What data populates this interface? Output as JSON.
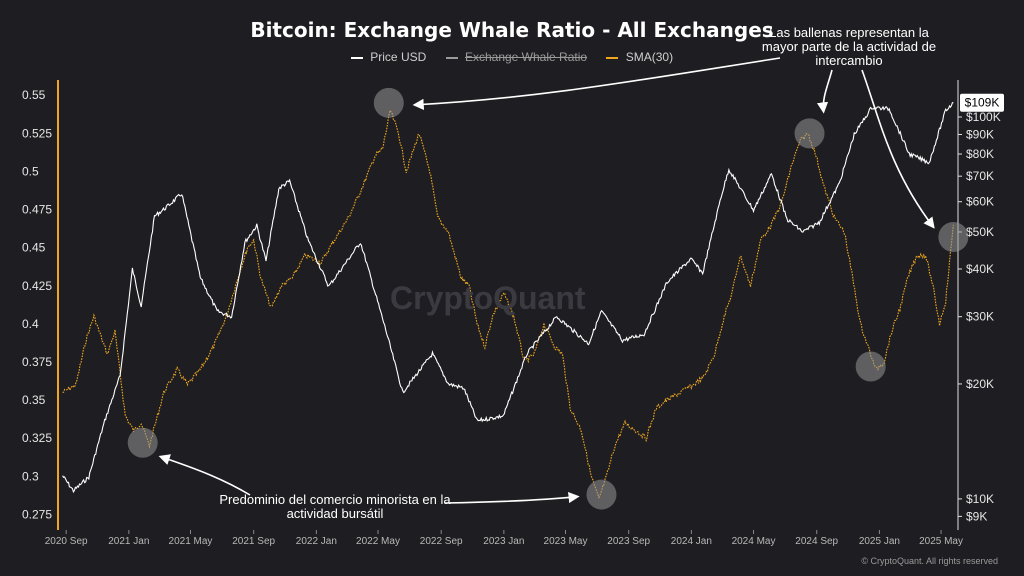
{
  "title": "Bitcoin: Exchange Whale Ratio - All Exchanges",
  "legend": {
    "price": "Price USD",
    "ratio": "Exchange Whale Ratio",
    "sma": "SMA(30)"
  },
  "annotations": {
    "top": "Las ballenas representan la mayor parte de la actividad de intercambio",
    "bottom": "Predominio del comercio minorista en la actividad bursátil"
  },
  "watermark": "CryptoQuant",
  "copyright": "© CryptoQuant. All rights reserved",
  "colors": {
    "background": "#1e1e22",
    "price": "#ffffff",
    "sma": "#f0a71e",
    "left_axis": "#f0a71e",
    "grid": "#2b2b31"
  },
  "chart_data": {
    "type": "line",
    "title": "Bitcoin: Exchange Whale Ratio - All Exchanges",
    "x_ticks": [
      "2020 Sep",
      "2021 Jan",
      "2021 May",
      "2021 Sep",
      "2022 Jan",
      "2022 May",
      "2022 Sep",
      "2023 Jan",
      "2023 May",
      "2023 Sep",
      "2024 Jan",
      "2024 May",
      "2024 Sep",
      "2025 Jan",
      "2025 May"
    ],
    "y_left": {
      "ticks": [
        "0.55",
        "0.525",
        "0.5",
        "0.475",
        "0.45",
        "0.425",
        "0.4",
        "0.375",
        "0.35",
        "0.325",
        "0.3",
        "0.275"
      ],
      "range": [
        0.27,
        0.56
      ]
    },
    "y_right": {
      "scale": "log",
      "ticks": [
        "$100K",
        "$90K",
        "$80K",
        "$70K",
        "$60K",
        "$50K",
        "$40K",
        "$30K",
        "$20K",
        "$10K",
        "$9K"
      ],
      "values": [
        100000,
        90000,
        80000,
        70000,
        60000,
        50000,
        40000,
        30000,
        20000,
        10000,
        9000
      ],
      "range": [
        8700,
        125000
      ],
      "current_label": "$109K",
      "current_value": 109000
    },
    "series": [
      {
        "name": "Price USD",
        "axis": "right",
        "points": [
          [
            "2020-08-25",
            11500
          ],
          [
            "2020-09-15",
            10500
          ],
          [
            "2020-10-15",
            11400
          ],
          [
            "2020-11-15",
            16000
          ],
          [
            "2020-12-15",
            21000
          ],
          [
            "2021-01-08",
            40000
          ],
          [
            "2021-01-25",
            32000
          ],
          [
            "2021-02-20",
            55000
          ],
          [
            "2021-03-15",
            58000
          ],
          [
            "2021-04-14",
            63000
          ],
          [
            "2021-05-20",
            38000
          ],
          [
            "2021-06-22",
            31000
          ],
          [
            "2021-07-20",
            30000
          ],
          [
            "2021-08-15",
            47000
          ],
          [
            "2021-09-07",
            52000
          ],
          [
            "2021-09-25",
            42000
          ],
          [
            "2021-10-20",
            65000
          ],
          [
            "2021-11-10",
            68000
          ],
          [
            "2021-12-15",
            48000
          ],
          [
            "2022-01-25",
            36000
          ],
          [
            "2022-03-28",
            47000
          ],
          [
            "2022-05-12",
            29000
          ],
          [
            "2022-06-18",
            19000
          ],
          [
            "2022-08-15",
            24000
          ],
          [
            "2022-09-15",
            20000
          ],
          [
            "2022-10-15",
            19500
          ],
          [
            "2022-11-10",
            16000
          ],
          [
            "2022-12-31",
            16500
          ],
          [
            "2023-02-15",
            24000
          ],
          [
            "2023-04-14",
            30000
          ],
          [
            "2023-06-15",
            25500
          ],
          [
            "2023-07-10",
            31000
          ],
          [
            "2023-08-20",
            26000
          ],
          [
            "2023-10-01",
            27000
          ],
          [
            "2023-11-15",
            37000
          ],
          [
            "2023-12-31",
            42500
          ],
          [
            "2024-01-23",
            39000
          ],
          [
            "2024-02-28",
            62000
          ],
          [
            "2024-03-14",
            73000
          ],
          [
            "2024-05-01",
            57000
          ],
          [
            "2024-06-05",
            71000
          ],
          [
            "2024-07-05",
            54000
          ],
          [
            "2024-08-05",
            50000
          ],
          [
            "2024-09-06",
            53000
          ],
          [
            "2024-10-15",
            67000
          ],
          [
            "2024-11-13",
            90000
          ],
          [
            "2024-12-17",
            106000
          ],
          [
            "2025-01-20",
            105000
          ],
          [
            "2025-02-28",
            80000
          ],
          [
            "2025-04-08",
            76000
          ],
          [
            "2025-05-10",
            104000
          ],
          [
            "2025-05-25",
            109000
          ]
        ]
      },
      {
        "name": "SMA(30)",
        "axis": "left",
        "points": [
          [
            "2020-08-25",
            0.355
          ],
          [
            "2020-09-20",
            0.36
          ],
          [
            "2020-10-10",
            0.39
          ],
          [
            "2020-10-25",
            0.405
          ],
          [
            "2020-11-20",
            0.38
          ],
          [
            "2020-12-05",
            0.395
          ],
          [
            "2020-12-25",
            0.34
          ],
          [
            "2021-01-10",
            0.33
          ],
          [
            "2021-01-25",
            0.335
          ],
          [
            "2021-02-10",
            0.32
          ],
          [
            "2021-03-10",
            0.355
          ],
          [
            "2021-04-05",
            0.37
          ],
          [
            "2021-04-25",
            0.36
          ],
          [
            "2021-05-20",
            0.37
          ],
          [
            "2021-06-15",
            0.385
          ],
          [
            "2021-07-10",
            0.405
          ],
          [
            "2021-08-01",
            0.43
          ],
          [
            "2021-08-20",
            0.45
          ],
          [
            "2021-09-01",
            0.455
          ],
          [
            "2021-09-15",
            0.43
          ],
          [
            "2021-10-05",
            0.41
          ],
          [
            "2021-10-25",
            0.425
          ],
          [
            "2021-11-15",
            0.43
          ],
          [
            "2021-12-10",
            0.445
          ],
          [
            "2022-01-10",
            0.44
          ],
          [
            "2022-02-05",
            0.455
          ],
          [
            "2022-03-05",
            0.47
          ],
          [
            "2022-04-01",
            0.49
          ],
          [
            "2022-04-25",
            0.51
          ],
          [
            "2022-05-10",
            0.515
          ],
          [
            "2022-05-25",
            0.54
          ],
          [
            "2022-06-10",
            0.525
          ],
          [
            "2022-06-25",
            0.5
          ],
          [
            "2022-07-20",
            0.525
          ],
          [
            "2022-08-10",
            0.5
          ],
          [
            "2022-08-25",
            0.47
          ],
          [
            "2022-09-15",
            0.46
          ],
          [
            "2022-10-10",
            0.43
          ],
          [
            "2022-10-25",
            0.425
          ],
          [
            "2022-11-10",
            0.4
          ],
          [
            "2022-11-25",
            0.385
          ],
          [
            "2022-12-10",
            0.405
          ],
          [
            "2023-01-01",
            0.42
          ],
          [
            "2023-01-20",
            0.405
          ],
          [
            "2023-02-10",
            0.375
          ],
          [
            "2023-03-01",
            0.38
          ],
          [
            "2023-03-20",
            0.4
          ],
          [
            "2023-04-10",
            0.385
          ],
          [
            "2023-04-25",
            0.38
          ],
          [
            "2023-05-10",
            0.345
          ],
          [
            "2023-06-01",
            0.33
          ],
          [
            "2023-06-20",
            0.3
          ],
          [
            "2023-07-05",
            0.285
          ],
          [
            "2023-07-20",
            0.3
          ],
          [
            "2023-08-05",
            0.32
          ],
          [
            "2023-08-25",
            0.335
          ],
          [
            "2023-09-15",
            0.33
          ],
          [
            "2023-10-05",
            0.325
          ],
          [
            "2023-10-25",
            0.345
          ],
          [
            "2023-11-15",
            0.35
          ],
          [
            "2023-12-10",
            0.355
          ],
          [
            "2024-01-05",
            0.36
          ],
          [
            "2024-01-25",
            0.365
          ],
          [
            "2024-02-15",
            0.38
          ],
          [
            "2024-03-05",
            0.405
          ],
          [
            "2024-03-20",
            0.42
          ],
          [
            "2024-04-05",
            0.445
          ],
          [
            "2024-04-25",
            0.425
          ],
          [
            "2024-05-15",
            0.455
          ],
          [
            "2024-06-05",
            0.465
          ],
          [
            "2024-06-25",
            0.48
          ],
          [
            "2024-07-15",
            0.505
          ],
          [
            "2024-07-31",
            0.52
          ],
          [
            "2024-08-15",
            0.525
          ],
          [
            "2024-08-31",
            0.51
          ],
          [
            "2024-09-15",
            0.49
          ],
          [
            "2024-10-05",
            0.47
          ],
          [
            "2024-10-25",
            0.46
          ],
          [
            "2024-11-10",
            0.43
          ],
          [
            "2024-11-25",
            0.4
          ],
          [
            "2024-12-10",
            0.385
          ],
          [
            "2024-12-25",
            0.37
          ],
          [
            "2025-01-10",
            0.375
          ],
          [
            "2025-01-25",
            0.395
          ],
          [
            "2025-02-10",
            0.41
          ],
          [
            "2025-02-25",
            0.43
          ],
          [
            "2025-03-15",
            0.445
          ],
          [
            "2025-04-01",
            0.445
          ],
          [
            "2025-04-15",
            0.425
          ],
          [
            "2025-04-28",
            0.4
          ],
          [
            "2025-05-10",
            0.415
          ],
          [
            "2025-05-25",
            0.465
          ]
        ]
      }
    ],
    "highlights": [
      {
        "date": "2021-01-28",
        "value": 0.322,
        "axis": "left"
      },
      {
        "date": "2022-05-22",
        "value": 0.545,
        "axis": "left"
      },
      {
        "date": "2023-07-10",
        "value": 0.288,
        "axis": "left"
      },
      {
        "date": "2024-08-18",
        "value": 0.525,
        "axis": "left"
      },
      {
        "date": "2024-12-15",
        "value": 0.372,
        "axis": "left"
      },
      {
        "date": "2025-05-25",
        "value": 0.457,
        "axis": "left"
      }
    ]
  }
}
